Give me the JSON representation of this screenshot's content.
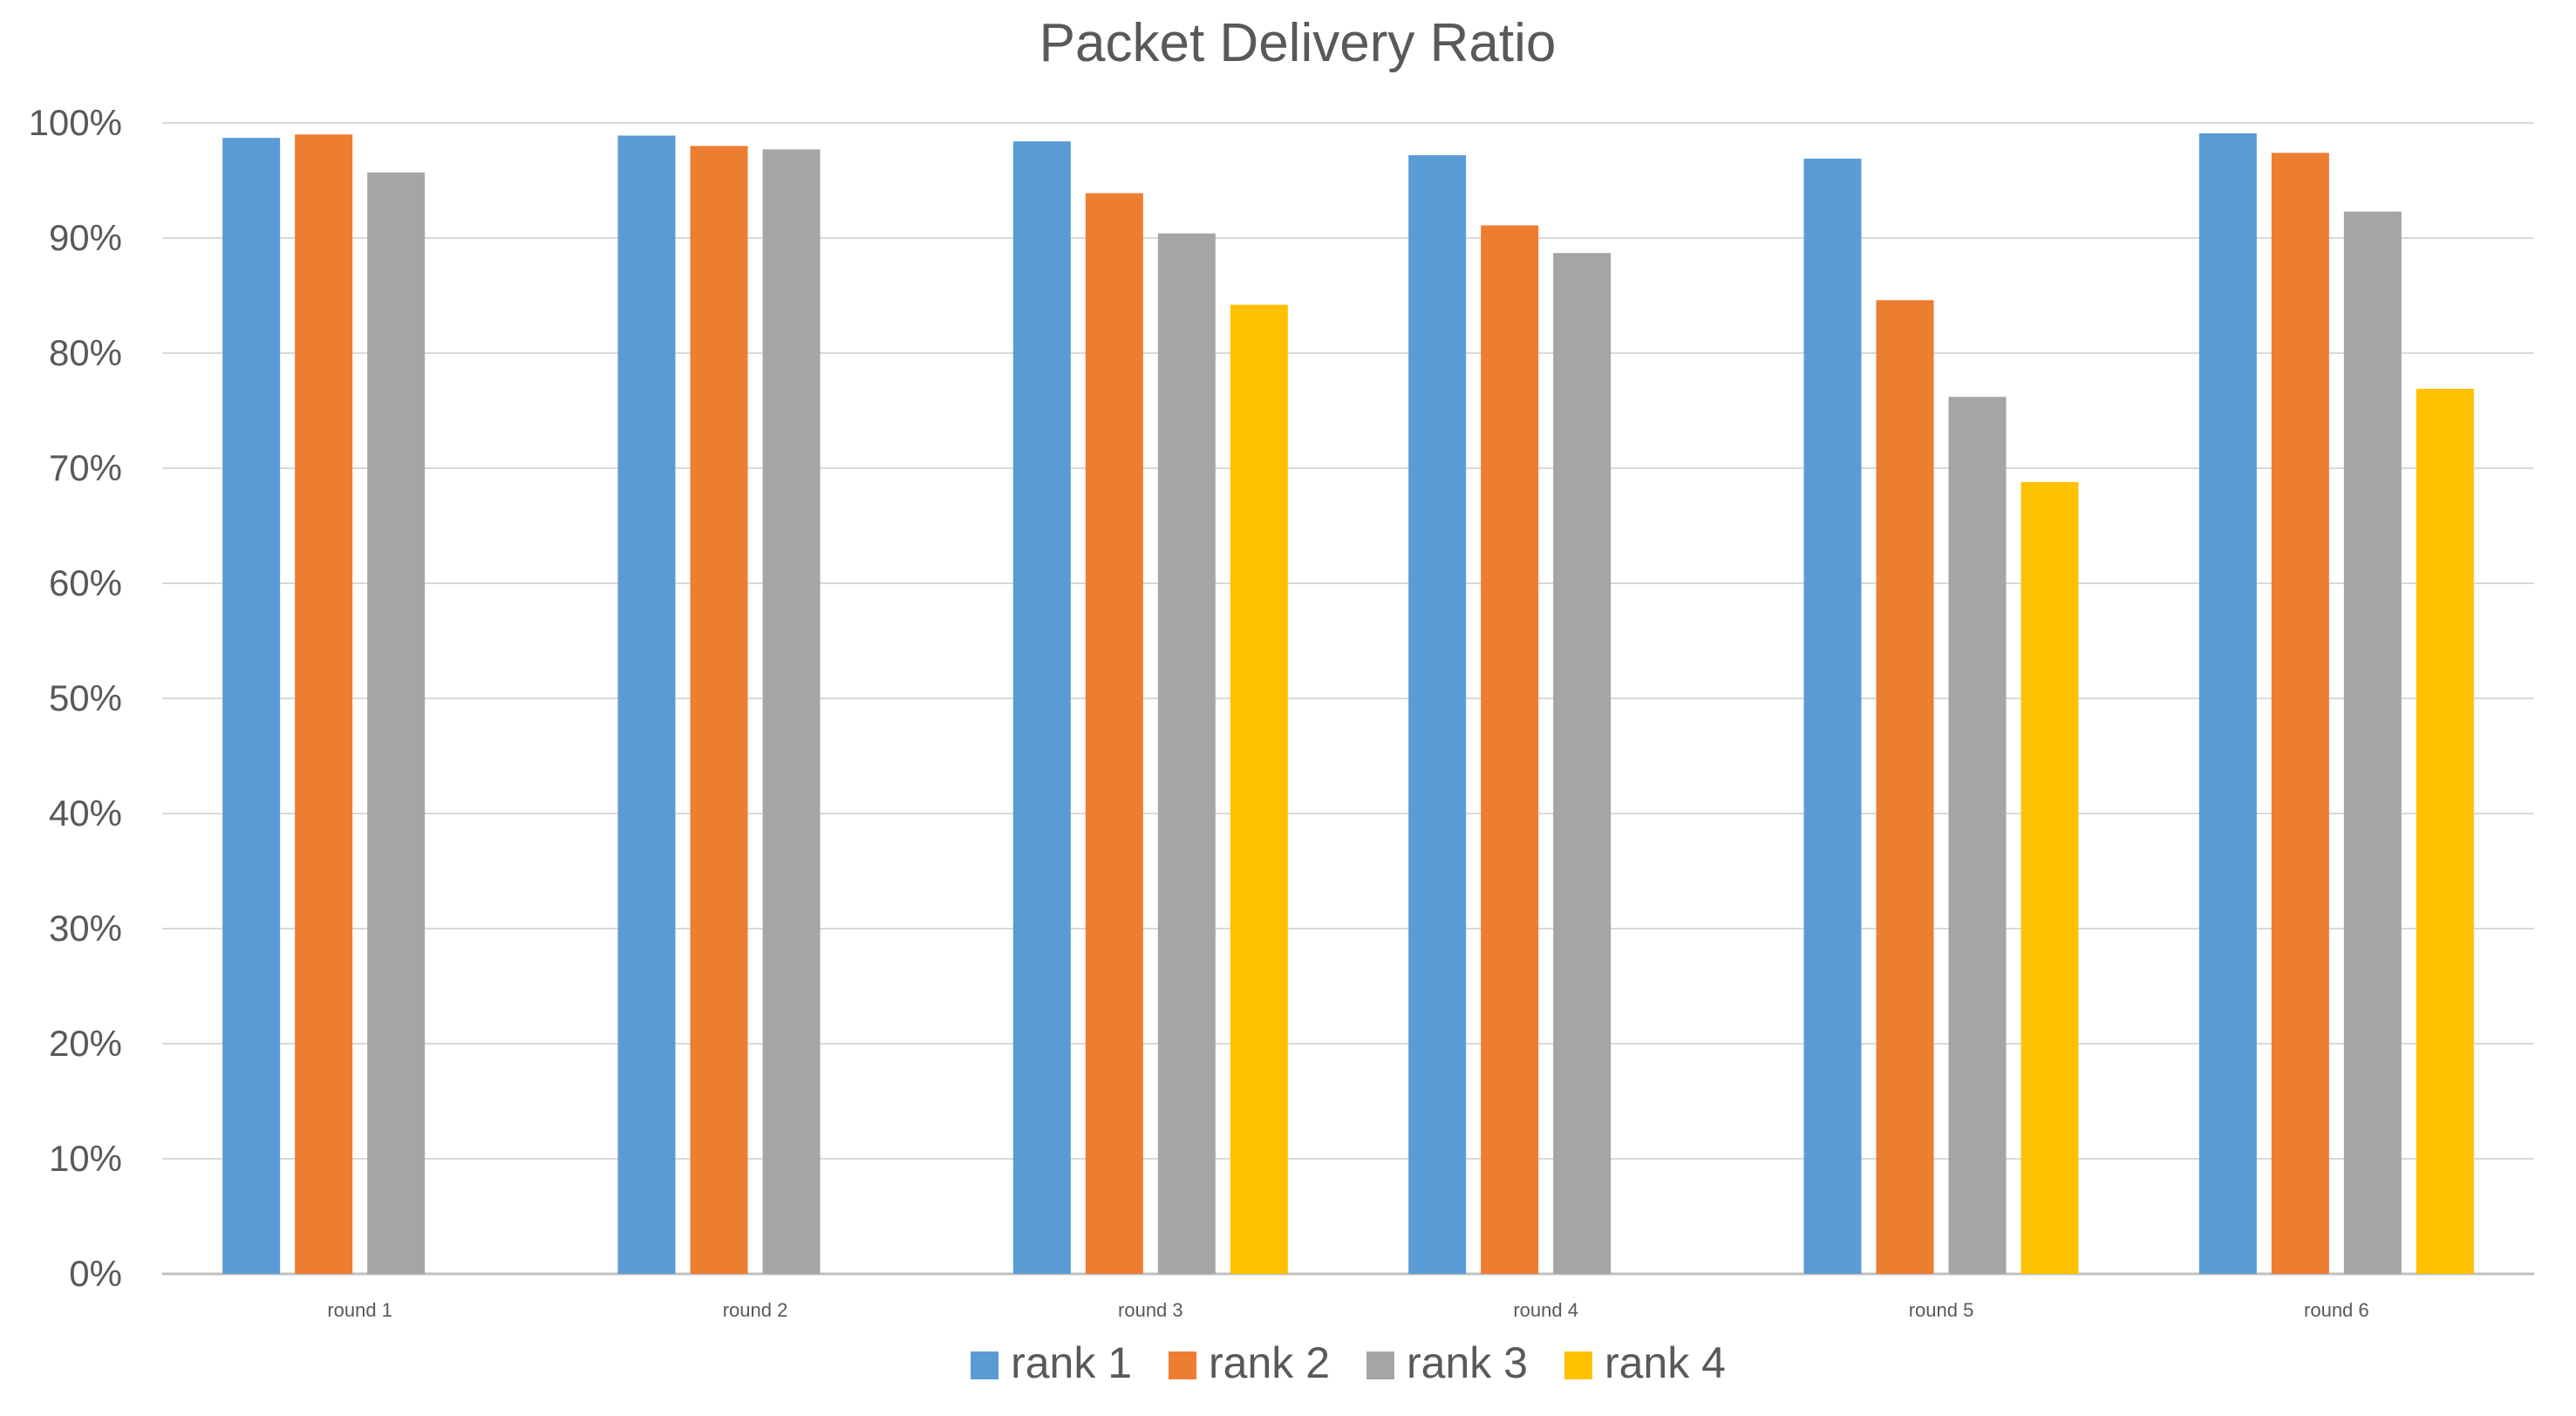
{
  "chart_data": {
    "type": "bar",
    "title": "Packet Delivery Ratio",
    "xlabel": "",
    "ylabel": "",
    "categories": [
      "round 1",
      "round 2",
      "round 3",
      "round 4",
      "round 5",
      "round 6"
    ],
    "y_ticks": [
      "0%",
      "10%",
      "20%",
      "30%",
      "40%",
      "50%",
      "60%",
      "70%",
      "80%",
      "90%",
      "100%"
    ],
    "ylim": [
      0,
      100
    ],
    "y_unit": "%",
    "grid": true,
    "legend_position": "bottom",
    "series": [
      {
        "name": "rank 1",
        "color": "#5B9BD5",
        "values": [
          98.7,
          98.9,
          98.4,
          97.2,
          96.9,
          99.1
        ]
      },
      {
        "name": "rank 2",
        "color": "#ED7D31",
        "values": [
          99.0,
          98.0,
          93.9,
          91.1,
          84.6,
          97.4
        ]
      },
      {
        "name": "rank 3",
        "color": "#A5A5A5",
        "values": [
          95.7,
          97.7,
          90.4,
          88.7,
          76.2,
          92.3
        ]
      },
      {
        "name": "rank 4",
        "color": "#FFC000",
        "values": [
          null,
          null,
          84.2,
          null,
          68.8,
          76.9
        ]
      }
    ]
  }
}
